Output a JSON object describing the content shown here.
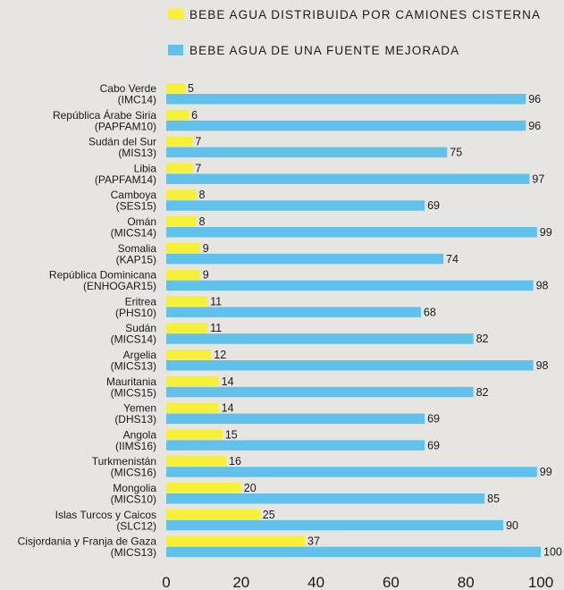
{
  "chart_data": {
    "type": "bar",
    "orientation": "horizontal",
    "legend_position": "top",
    "grid": false,
    "xlim": [
      0,
      100
    ],
    "xticks": [
      0,
      20,
      40,
      60,
      80,
      100
    ],
    "categories": [
      [
        "Cabo Verde",
        "(IMC14)"
      ],
      [
        "República Árabe Siria",
        "(PAPFAM10)"
      ],
      [
        "Sudán del Sur",
        "(MIS13)"
      ],
      [
        "Libia",
        "(PAPFAM14)"
      ],
      [
        "Camboya",
        "(SES15)"
      ],
      [
        "Omán",
        "(MICS14)"
      ],
      [
        "Somalia",
        "(KAP15)"
      ],
      [
        "República Dominicana",
        "(ENHOGAR15)"
      ],
      [
        "Eritrea",
        "(PHS10)"
      ],
      [
        "Sudán",
        "(MICS14)"
      ],
      [
        "Argelia",
        "(MICS13)"
      ],
      [
        "Mauritania",
        "(MICS15)"
      ],
      [
        "Yemen",
        "(DHS13)"
      ],
      [
        "Angola",
        "(IIMS16)"
      ],
      [
        "Turkmenistán",
        "(MICS16)"
      ],
      [
        "Mongolia",
        "(MICS10)"
      ],
      [
        "Islas Turcos y Caicos",
        "(SLC12)"
      ],
      [
        "Cisjordania y Franja de Gaza",
        "(MICS13)"
      ]
    ],
    "series": [
      {
        "name": "BEBE AGUA DISTRIBUIDA POR CAMIONES CISTERNA",
        "color": "#f7f03a",
        "values": [
          5,
          6,
          7,
          7,
          8,
          8,
          9,
          9,
          11,
          11,
          12,
          14,
          14,
          15,
          16,
          20,
          25,
          37
        ]
      },
      {
        "name": "BEBE AGUA DE UNA FUENTE MEJORADA",
        "color": "#62c1ea",
        "values": [
          96,
          96,
          75,
          97,
          69,
          99,
          74,
          98,
          68,
          82,
          98,
          82,
          69,
          69,
          99,
          85,
          90,
          100
        ]
      }
    ]
  }
}
